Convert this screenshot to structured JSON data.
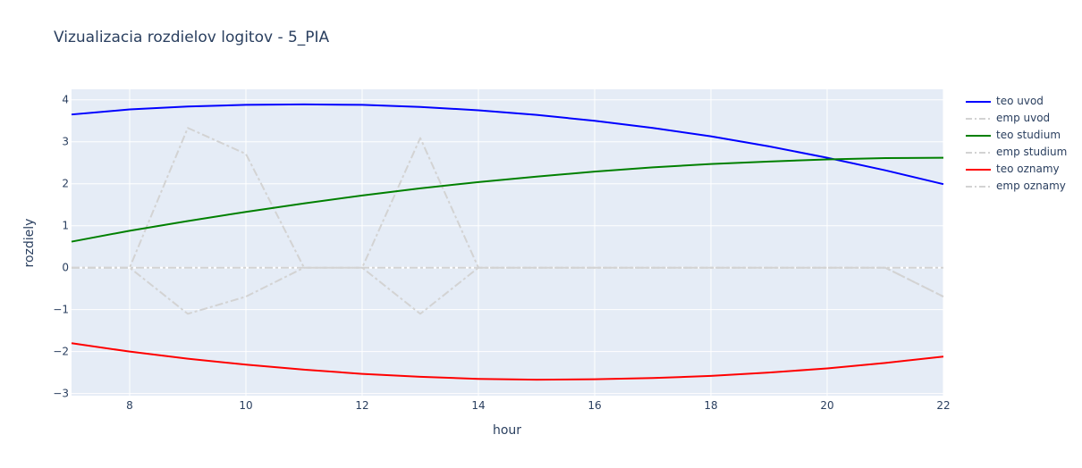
{
  "chart_data": {
    "type": "line",
    "title": "Vizualizacia rozdielov logitov - 5_PIA",
    "xlabel": "hour",
    "ylabel": "rozdiely",
    "xlim": [
      7,
      22
    ],
    "ylim": [
      -3.05,
      4.25
    ],
    "x_ticks": [
      8,
      10,
      12,
      14,
      16,
      18,
      20,
      22
    ],
    "y_ticks": [
      4,
      3,
      2,
      1,
      0,
      -1,
      -2,
      -3
    ],
    "x_tick_labels": [
      "8",
      "10",
      "12",
      "14",
      "16",
      "18",
      "20",
      "22"
    ],
    "y_tick_labels": [
      "4",
      "3",
      "2",
      "1",
      "0",
      "−1",
      "−2",
      "−3"
    ],
    "grid": true,
    "legend_position": "right",
    "plot_background": "#e5ecf6",
    "x": [
      7,
      8,
      9,
      10,
      11,
      12,
      13,
      14,
      15,
      16,
      17,
      18,
      19,
      20,
      21,
      22
    ],
    "series": [
      {
        "name": "teo uvod",
        "color": "#0000ff",
        "dash": "solid",
        "values": [
          3.65,
          3.77,
          3.84,
          3.88,
          3.89,
          3.88,
          3.83,
          3.75,
          3.64,
          3.5,
          3.33,
          3.13,
          2.89,
          2.62,
          2.32,
          1.99
        ]
      },
      {
        "name": "emp uvod",
        "color": "#d3d3d3",
        "dash": "dashdot",
        "values": [
          0,
          0,
          3.33,
          2.71,
          0,
          0,
          3.09,
          0,
          0,
          0,
          0,
          0,
          0,
          0,
          0,
          -0.69
        ]
      },
      {
        "name": "teo studium",
        "color": "#008000",
        "dash": "solid",
        "values": [
          0.62,
          0.88,
          1.11,
          1.33,
          1.53,
          1.72,
          1.89,
          2.04,
          2.17,
          2.29,
          2.39,
          2.47,
          2.53,
          2.58,
          2.61,
          2.62
        ]
      },
      {
        "name": "emp studium",
        "color": "#d3d3d3",
        "dash": "dashdot",
        "values": [
          0,
          0,
          -1.1,
          -0.69,
          0,
          0,
          -1.1,
          0,
          0,
          0,
          0,
          0,
          0,
          0,
          0,
          -0.69
        ]
      },
      {
        "name": "teo oznamy",
        "color": "#ff0000",
        "dash": "solid",
        "values": [
          -1.8,
          -2.0,
          -2.17,
          -2.31,
          -2.43,
          -2.53,
          -2.6,
          -2.65,
          -2.67,
          -2.66,
          -2.63,
          -2.58,
          -2.5,
          -2.4,
          -2.27,
          -2.12
        ]
      },
      {
        "name": "emp oznamy",
        "color": "#d3d3d3",
        "dash": "dashdot",
        "values": [
          0,
          0,
          0,
          0,
          0,
          0,
          0,
          0,
          0,
          0,
          0,
          0,
          0,
          0,
          0,
          0
        ]
      }
    ]
  }
}
